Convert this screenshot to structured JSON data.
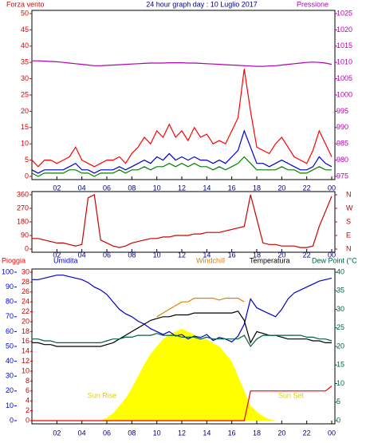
{
  "chart_data": [
    {
      "type": "line",
      "title": "24 hour graph day : 10 Luglio 2017",
      "ylabel": "Forza vento",
      "y2label": "Pressione",
      "x": [
        0,
        0.5,
        1,
        1.5,
        2,
        2.5,
        3,
        3.5,
        4,
        4.5,
        5,
        5.5,
        6,
        6.5,
        7,
        7.5,
        8,
        8.5,
        9,
        9.5,
        10,
        10.5,
        11,
        11.5,
        12,
        12.5,
        13,
        13.5,
        14,
        14.5,
        15,
        15.5,
        16,
        16.5,
        17,
        17.5,
        18,
        18.5,
        19,
        19.5,
        20,
        20.5,
        21,
        21.5,
        22,
        22.5,
        23,
        23.5,
        24
      ],
      "xlim": [
        0,
        24
      ],
      "xticks": [
        {
          "value": 2,
          "label": "02"
        },
        {
          "value": 4,
          "label": "04"
        },
        {
          "value": 6,
          "label": "06"
        },
        {
          "value": 8,
          "label": "08"
        },
        10,
        12,
        14,
        16,
        18,
        20,
        22,
        {
          "value": 24,
          "label": "00"
        }
      ],
      "ylim": [
        0,
        50
      ],
      "yticks": [
        0,
        5,
        10,
        15,
        20,
        25,
        30,
        35,
        40,
        45,
        50
      ],
      "y2lim": [
        975,
        1025
      ],
      "y2ticks": [
        975,
        980,
        985,
        990,
        995,
        1000,
        1005,
        1010,
        1015,
        1020,
        1025
      ],
      "series": [
        {
          "color": "#ff0000",
          "values": [
            5,
            3,
            5,
            5,
            4,
            5,
            6,
            9,
            5,
            4,
            3,
            4,
            5,
            5,
            6,
            4,
            7,
            9,
            12,
            10,
            14,
            12,
            16,
            12,
            14,
            11,
            15,
            12,
            13,
            10,
            11,
            10,
            14,
            18,
            33,
            20,
            9,
            8,
            7,
            10,
            12,
            9,
            6,
            5,
            4,
            8,
            14,
            10,
            6
          ]
        },
        {
          "color": "#0000cc",
          "values": [
            2,
            1,
            2,
            2,
            2,
            2,
            3,
            4,
            2,
            2,
            1,
            2,
            2,
            2,
            3,
            2,
            3,
            4,
            5,
            4,
            6,
            5,
            7,
            5,
            6,
            5,
            6,
            5,
            5,
            4,
            5,
            4,
            6,
            8,
            14,
            9,
            4,
            4,
            3,
            4,
            5,
            4,
            3,
            2,
            2,
            3,
            6,
            4,
            3
          ]
        },
        {
          "color": "#008000",
          "values": [
            1,
            0,
            1,
            1,
            1,
            1,
            2,
            2,
            1,
            1,
            0,
            1,
            1,
            1,
            2,
            1,
            2,
            2,
            3,
            2,
            3,
            3,
            4,
            3,
            4,
            3,
            4,
            3,
            3,
            2,
            3,
            2,
            3,
            4,
            6,
            4,
            2,
            2,
            2,
            2,
            3,
            2,
            2,
            1,
            1,
            2,
            3,
            2,
            2
          ]
        },
        {
          "color": "#b000b0",
          "axis": "y2",
          "values": [
            1010.5,
            1010.5,
            1010.4,
            1010.3,
            1010.2,
            1010,
            1009.8,
            1009.6,
            1009.4,
            1009.2,
            1009,
            1009,
            1009.1,
            1009.2,
            1009.3,
            1009.4,
            1009.5,
            1009.6,
            1009.7,
            1009.8,
            1009.8,
            1009.8,
            1009.9,
            1009.9,
            1009.9,
            1009.8,
            1009.8,
            1009.7,
            1009.6,
            1009.5,
            1009.4,
            1009.3,
            1009.2,
            1009.1,
            1009,
            1008.9,
            1008.8,
            1008.8,
            1008.9,
            1009,
            1009.2,
            1009.4,
            1009.6,
            1009.8,
            1010,
            1010.1,
            1010,
            1009.8,
            1009.4
          ]
        }
      ]
    },
    {
      "type": "line",
      "x": [
        0,
        0.5,
        1,
        1.5,
        2,
        2.5,
        3,
        3.5,
        4,
        4.5,
        5,
        5.5,
        6,
        6.5,
        7,
        7.5,
        8,
        8.5,
        9,
        9.5,
        10,
        10.5,
        11,
        11.5,
        12,
        12.5,
        13,
        13.5,
        14,
        14.5,
        15,
        15.5,
        16,
        16.5,
        17,
        17.5,
        18,
        18.5,
        19,
        19.5,
        20,
        20.5,
        21,
        21.5,
        22,
        22.5,
        23,
        23.5,
        24
      ],
      "xlim": [
        0,
        24
      ],
      "xticks": [
        {
          "value": 2,
          "label": "02"
        },
        {
          "value": 4,
          "label": "04"
        },
        {
          "value": 6,
          "label": "06"
        },
        {
          "value": 8,
          "label": "08"
        },
        10,
        12,
        14,
        16,
        18,
        20,
        22,
        {
          "value": 24,
          "label": "00"
        }
      ],
      "ylim": [
        0,
        360
      ],
      "yticks": [
        0,
        90,
        180,
        270,
        360
      ],
      "y2lim": [
        0,
        360
      ],
      "y2ticks": [
        {
          "value": 0,
          "label": "N"
        },
        {
          "value": 90,
          "label": "E"
        },
        {
          "value": 180,
          "label": "S"
        },
        {
          "value": 270,
          "label": "W"
        },
        {
          "value": 360,
          "label": "N"
        }
      ],
      "series": [
        {
          "color": "#cc0000",
          "values": [
            70,
            70,
            60,
            50,
            40,
            40,
            30,
            20,
            30,
            340,
            360,
            60,
            40,
            20,
            10,
            20,
            40,
            50,
            60,
            70,
            70,
            80,
            80,
            90,
            90,
            90,
            100,
            100,
            110,
            110,
            110,
            120,
            130,
            140,
            150,
            360,
            200,
            40,
            30,
            30,
            20,
            20,
            20,
            10,
            10,
            20,
            150,
            250,
            350
          ]
        }
      ]
    },
    {
      "type": "line",
      "x": [
        0,
        0.5,
        1,
        1.5,
        2,
        2.5,
        3,
        3.5,
        4,
        4.5,
        5,
        5.5,
        6,
        6.5,
        7,
        7.5,
        8,
        8.5,
        9,
        9.5,
        10,
        10.5,
        11,
        11.5,
        12,
        12.5,
        13,
        13.5,
        14,
        14.5,
        15,
        15.5,
        16,
        16.5,
        17,
        17.5,
        18,
        18.5,
        19,
        19.5,
        20,
        20.5,
        21,
        21.5,
        22,
        22.5,
        23,
        23.5,
        24
      ],
      "xlim": [
        0,
        24
      ],
      "xticks": [
        {
          "value": 2,
          "label": "02"
        },
        {
          "value": 4,
          "label": "04"
        },
        {
          "value": 6,
          "label": "06"
        },
        {
          "value": 8,
          "label": "08"
        },
        10,
        12,
        14,
        16,
        18,
        20,
        22,
        {
          "value": 24,
          "label": "00"
        }
      ],
      "ylim": [
        0,
        100
      ],
      "yticks": [
        0,
        10,
        20,
        30,
        40,
        50,
        60,
        70,
        80,
        90,
        100
      ],
      "y3lim": [
        0,
        30
      ],
      "y3ticks": [
        0,
        2,
        4,
        6,
        8,
        10,
        12,
        14,
        16,
        18,
        20,
        22,
        24,
        26,
        28,
        30
      ],
      "y2lim": [
        0,
        40
      ],
      "y2ticks": [
        0,
        5,
        10,
        15,
        20,
        25,
        30,
        35,
        40
      ],
      "annotations": [
        "Sun Rise",
        "Sun Set"
      ],
      "series": [
        {
          "color": "#ffff00",
          "area": true,
          "values": [
            0,
            0,
            0,
            0,
            0,
            0,
            0,
            0,
            0,
            0,
            0,
            0,
            2,
            5,
            10,
            15,
            22,
            30,
            38,
            45,
            50,
            55,
            58,
            60,
            62,
            60,
            58,
            55,
            55,
            52,
            50,
            45,
            40,
            30,
            20,
            10,
            6,
            3,
            1,
            0,
            0,
            0,
            0,
            0,
            0,
            0,
            0,
            0,
            0
          ]
        },
        {
          "name": "Pioggia",
          "color": "#ee0000",
          "axis": "y3",
          "values": [
            0,
            0,
            0,
            0,
            0,
            0,
            0,
            0,
            0,
            0,
            0,
            0,
            0,
            0,
            0,
            0,
            0,
            0,
            0,
            0,
            0,
            0,
            0,
            0,
            0,
            0,
            0,
            0,
            0,
            0,
            0,
            0,
            0,
            0,
            0,
            6,
            6,
            6,
            6,
            6,
            6,
            6,
            6,
            6,
            6,
            6,
            6,
            6,
            7
          ]
        },
        {
          "name": "Umidita",
          "color": "#0000cc",
          "values": [
            95,
            95,
            96,
            97,
            98,
            98,
            97,
            96,
            95,
            93,
            90,
            88,
            85,
            80,
            75,
            72,
            70,
            67,
            65,
            62,
            60,
            58,
            60,
            57,
            58,
            55,
            57,
            56,
            58,
            54,
            56,
            55,
            53,
            57,
            65,
            82,
            76,
            74,
            72,
            70,
            75,
            82,
            86,
            88,
            90,
            92,
            94,
            95,
            96
          ]
        },
        {
          "name": "Windchill",
          "color": "#e08000",
          "axis": "y2",
          "values": [
            null,
            null,
            null,
            null,
            null,
            null,
            null,
            null,
            null,
            null,
            null,
            null,
            null,
            null,
            null,
            null,
            null,
            null,
            null,
            null,
            28,
            29,
            30,
            31,
            32,
            32,
            33,
            33,
            33,
            33,
            32.5,
            33,
            33,
            33,
            32,
            null,
            null,
            null,
            null,
            null,
            null,
            null,
            null,
            null,
            null,
            null,
            null,
            null,
            null
          ]
        },
        {
          "name": "Temperatura",
          "color": "#000000",
          "axis": "y2",
          "values": [
            21,
            21,
            20.5,
            20.5,
            20,
            20,
            20,
            20,
            20,
            20,
            20,
            20,
            20.5,
            21,
            22,
            23,
            24,
            25,
            26,
            27,
            27.5,
            28,
            28,
            28.5,
            28.5,
            28.5,
            29,
            29,
            29,
            29,
            29,
            29,
            29,
            29.5,
            27,
            21,
            24,
            23.5,
            23,
            23,
            22.5,
            22,
            22,
            22,
            22,
            21.5,
            21.5,
            21,
            21
          ]
        },
        {
          "name": "Dew Point (°C",
          "color": "#006040",
          "axis": "y2",
          "values": [
            22,
            22,
            21.5,
            21.5,
            21,
            21,
            21,
            21,
            21,
            21,
            21,
            21,
            21.5,
            22,
            22,
            22.5,
            22.5,
            23,
            23,
            23,
            23.5,
            23,
            23,
            23,
            22.5,
            22.5,
            22.5,
            22,
            22.5,
            22,
            22,
            22,
            22,
            22,
            23,
            20,
            22,
            23,
            23,
            23,
            23,
            23,
            23,
            23,
            22.5,
            22.5,
            22,
            22,
            21.5
          ]
        }
      ]
    }
  ]
}
